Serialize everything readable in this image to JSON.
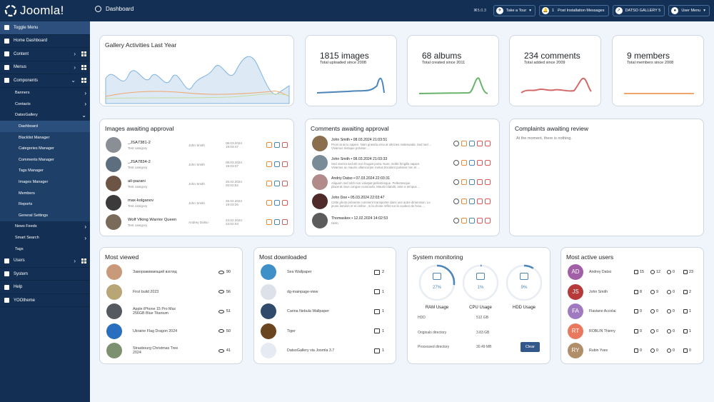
{
  "topbar": {
    "logo": "Joomla!",
    "page": "Dashboard",
    "version": "⌘5.0.3",
    "take_tour": "Take a Tour",
    "notif_count": "1",
    "post_install": "Post Installation Messages",
    "site": "DATSO GALLERY 5",
    "user_menu": "User Menu"
  },
  "sidebar": {
    "toggle": "Toggle Menu",
    "items": [
      {
        "label": "Home Dashboard"
      },
      {
        "label": "Content"
      },
      {
        "label": "Menus"
      },
      {
        "label": "Components"
      }
    ],
    "components": [
      "Banners",
      "Contacts",
      "DatsoGallery"
    ],
    "gallery": [
      "Dashboard",
      "Blacklist Manager",
      "Categories Manager",
      "Comments Manager",
      "Tags Manager",
      "Images Manager",
      "Members",
      "Reports",
      "General Settings"
    ],
    "more_sub": [
      "News Feeds",
      "Smart Search",
      "Tags"
    ],
    "bottom": [
      "Users",
      "System",
      "Help",
      "YOOtheme"
    ]
  },
  "stats": {
    "activities": "Gallery Activities Last Year",
    "images": {
      "num": "1815 images",
      "sub": "Total uploaded since 2008",
      "color": "#4c86b8"
    },
    "albums": {
      "num": "68 albums",
      "sub": "Total created since 2011",
      "color": "#6ab36c"
    },
    "comments": {
      "num": "234 comments",
      "sub": "Total added since 2009",
      "color": "#d26a6a"
    },
    "members": {
      "num": "9 members",
      "sub": "Total members since 2008",
      "color": "#f0a66b"
    }
  },
  "images_approval": {
    "title": "Images awaiting approval",
    "rows": [
      {
        "name": "_JSA7381-2",
        "cat": "Test category",
        "user": "John Smith",
        "date": "08.03.2024",
        "time": "19:03:47"
      },
      {
        "name": "_JSA7834-2",
        "cat": "Test category",
        "user": "John Smith",
        "date": "08.03.2024",
        "time": "19:03:37"
      },
      {
        "name": "ali-pazani",
        "cat": "Test category",
        "user": "John Smith",
        "date": "26.02.2024",
        "time": "20:02:52"
      },
      {
        "name": "max-kolganov",
        "cat": "Test category",
        "user": "John Smith",
        "date": "26.02.2024",
        "time": "19:03:26"
      },
      {
        "name": "Wolf Viking Warrior Queen",
        "cat": "Test category",
        "user": "Andrey Datso",
        "date": "24.02.2024",
        "time": "23:02:03"
      }
    ]
  },
  "comments_approval": {
    "title": "Comments awaiting approval",
    "rows": [
      {
        "head": "John Smith • 08.03.2024 21:03:51",
        "text": "Proin at arcu sapien. Nam gravida urna at ultricies malesuada. Sed sed ...",
        "text2": "Vivamus tristique pulvinar ..."
      },
      {
        "head": "John Smith • 08.03.2024 21:03:33",
        "text": "Sed viverra sed elit non feugiat porta. Nunc mollis fringilla sapien.",
        "text2": "Vivamus ac mauris ullamcorper metus tincidunt pulvinar non et ..."
      },
      {
        "head": "Andriy Datso • 07.03.2024 22:03:31",
        "text": "Aliquam sed nibh non volutpat pellentesque. Pellentesque",
        "text2": "placerat risus congue commodo. Mauris blandit, ante a tempus ..."
      },
      {
        "head": "John Doe • 05.03.2024 22:03:47",
        "text": "Cette photo présente comment transporter dans une autre dimension. Le",
        "text2": "jeune lumière et el ombre , si la chose reflet sur la couleur de l'eau ..."
      },
      {
        "head": "Thomaskex • 12.02.2024 14:02:53",
        "text": "Hello",
        "text2": ""
      }
    ]
  },
  "complaints": {
    "title": "Complaints awaiting review",
    "text": "At the moment, there is nothing."
  },
  "most_viewed": {
    "title": "Most viewed",
    "rows": [
      {
        "name": "Завораживающий взгляд",
        "name2": "",
        "views": "90"
      },
      {
        "name": "First build 2023",
        "name2": "",
        "views": "56"
      },
      {
        "name": "Apple iPhone 15 Pro Max",
        "name2": "256GB Blue Titanium",
        "views": "51"
      },
      {
        "name": "Ukraine Flag Dragon 2024",
        "name2": "",
        "views": "50"
      },
      {
        "name": "Strasbourg Christmas Tree",
        "name2": "2024",
        "views": "41"
      }
    ]
  },
  "most_downloaded": {
    "title": "Most downloaded",
    "rows": [
      {
        "name": "Sea Wallpaper",
        "count": "2"
      },
      {
        "name": "dg-mainpage-view",
        "count": "1"
      },
      {
        "name": "Carina Nebula Wallpaper",
        "count": "1"
      },
      {
        "name": "Tiger",
        "count": "1"
      },
      {
        "name": "DatsoGallery via Joomla 3.7",
        "count": "1"
      }
    ]
  },
  "system": {
    "title": "System monitoring",
    "gauges": [
      {
        "label": "RAM Usage",
        "pct": "27%"
      },
      {
        "label": "CPU Usage",
        "pct": "1%"
      },
      {
        "label": "HDD Usage",
        "pct": "9%"
      }
    ],
    "rows": [
      {
        "label": "HDD",
        "value": "512 GB"
      },
      {
        "label": "Originals directory",
        "value": "3.83 GB"
      },
      {
        "label": "Processed directory",
        "value": "30.49 MB"
      }
    ],
    "clear": "Clear"
  },
  "active_users": {
    "title": "Most active users",
    "rows": [
      {
        "ini": "AD",
        "name": "Andrey Datso",
        "a": "15",
        "b": "12",
        "c": "0",
        "d": "23",
        "color": "#a05fa6"
      },
      {
        "ini": "JS",
        "name": "John Smith",
        "a": "8",
        "b": "9",
        "c": "0",
        "d": "2",
        "color": "#b73a3a"
      },
      {
        "ini": "FA",
        "name": "Flaviano Accolai",
        "a": "0",
        "b": "0",
        "c": "0",
        "d": "1",
        "color": "#a07ac0"
      },
      {
        "ini": "RT",
        "name": "ROBLIN Thierry",
        "a": "0",
        "b": "0",
        "c": "0",
        "d": "1",
        "color": "#e9795e"
      },
      {
        "ini": "RY",
        "name": "Rubin Yves",
        "a": "0",
        "b": "0",
        "c": "0",
        "d": "0",
        "color": "#b08e6a"
      }
    ]
  }
}
